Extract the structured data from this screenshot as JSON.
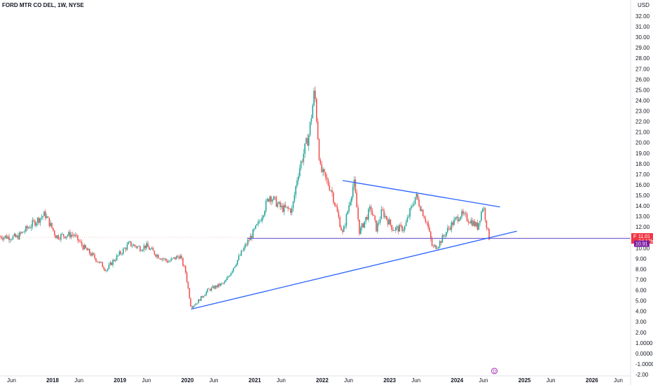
{
  "chart_data": {
    "type": "candlestick",
    "title": "FORD MTR CO DEL, 1W, NYSE",
    "currency": "USD",
    "y_scale": "log",
    "ylim": [
      -2.0,
      32.0
    ],
    "y_ticks": [
      "32.00",
      "31.00",
      "30.00",
      "29.00",
      "28.00",
      "27.00",
      "26.00",
      "25.00",
      "24.00",
      "23.00",
      "22.00",
      "21.00",
      "20.00",
      "19.00",
      "18.00",
      "17.00",
      "16.00",
      "15.00",
      "14.00",
      "13.00",
      "12.00",
      "11.00",
      "10.00",
      "9.00",
      "8.00",
      "7.00",
      "6.00",
      "5.00",
      "4.00",
      "3.00",
      "2.00",
      "1.0000",
      "0.0000",
      "-1.0000",
      "-2.00"
    ],
    "x_ticks": [
      "Jun",
      "2018",
      "Jun",
      "2019",
      "Jun",
      "2020",
      "Jun",
      "2021",
      "Jun",
      "2022",
      "Jun",
      "2023",
      "Jun",
      "2024",
      "Jun",
      "2025",
      "Jun",
      "2026",
      "Jun"
    ],
    "x_range": [
      "2017-05",
      "2026-08"
    ],
    "series": [
      {
        "name": "F",
        "points": [
          [
            "2017-05",
            11.1
          ],
          [
            "2017-08",
            11.0
          ],
          [
            "2017-11",
            12.4
          ],
          [
            "2018-01",
            13.2
          ],
          [
            "2018-03",
            11.1
          ],
          [
            "2018-06",
            11.3
          ],
          [
            "2018-08",
            10.0
          ],
          [
            "2018-10",
            9.0
          ],
          [
            "2018-12",
            7.9
          ],
          [
            "2019-01",
            8.7
          ],
          [
            "2019-04",
            10.4
          ],
          [
            "2019-06",
            10.0
          ],
          [
            "2019-07",
            10.2
          ],
          [
            "2019-09",
            9.3
          ],
          [
            "2019-11",
            8.7
          ],
          [
            "2020-01",
            9.3
          ],
          [
            "2020-02",
            7.8
          ],
          [
            "2020-03",
            4.4
          ],
          [
            "2020-04",
            4.8
          ],
          [
            "2020-06",
            6.0
          ],
          [
            "2020-09",
            6.7
          ],
          [
            "2020-11",
            8.6
          ],
          [
            "2021-01",
            10.5
          ],
          [
            "2021-03",
            12.3
          ],
          [
            "2021-05",
            15.0
          ],
          [
            "2021-07",
            13.8
          ],
          [
            "2021-09",
            13.6
          ],
          [
            "2021-10",
            17.0
          ],
          [
            "2021-12",
            20.8
          ],
          [
            "2022-01",
            25.0
          ],
          [
            "2022-02",
            17.5
          ],
          [
            "2022-04",
            15.5
          ],
          [
            "2022-06",
            11.3
          ],
          [
            "2022-08",
            16.3
          ],
          [
            "2022-09",
            11.5
          ],
          [
            "2022-11",
            13.8
          ],
          [
            "2022-12",
            11.8
          ],
          [
            "2023-01",
            13.5
          ],
          [
            "2023-03",
            11.8
          ],
          [
            "2023-05",
            11.9
          ],
          [
            "2023-07",
            15.0
          ],
          [
            "2023-09",
            12.4
          ],
          [
            "2023-10",
            10.0
          ],
          [
            "2023-11",
            10.3
          ],
          [
            "2024-01",
            12.0
          ],
          [
            "2024-03",
            13.2
          ],
          [
            "2024-05",
            12.5
          ],
          [
            "2024-06",
            12.0
          ],
          [
            "2024-07",
            14.1
          ],
          [
            "2024-08",
            11.0
          ]
        ]
      }
    ],
    "trendlines": [
      {
        "from": [
          "2020-03",
          4.2
        ],
        "to": [
          "2025-01",
          11.6
        ],
        "color": "#2962ff"
      },
      {
        "from": [
          "2022-06",
          16.4
        ],
        "to": [
          "2024-10",
          13.9
        ],
        "color": "#2962ff"
      }
    ],
    "horizontal_lines": [
      {
        "from": "2021-01",
        "to": "2026-08",
        "value": 10.91,
        "color": "#5b4fcf"
      }
    ],
    "current_price": {
      "value": 11.01,
      "label": "11.01",
      "sub": "3d 17h",
      "symbol": "F",
      "color": "#f23645"
    },
    "line_price": {
      "value": 10.91,
      "label": "10.91",
      "color": "#7b1fa2"
    },
    "up_color": "#26a69a",
    "down_color": "#ef5350",
    "grid": false,
    "legend": "none",
    "event_marker": {
      "date": "2024-09",
      "icon": "dividend-icon",
      "label": "D",
      "color": "#9c27b0"
    }
  }
}
